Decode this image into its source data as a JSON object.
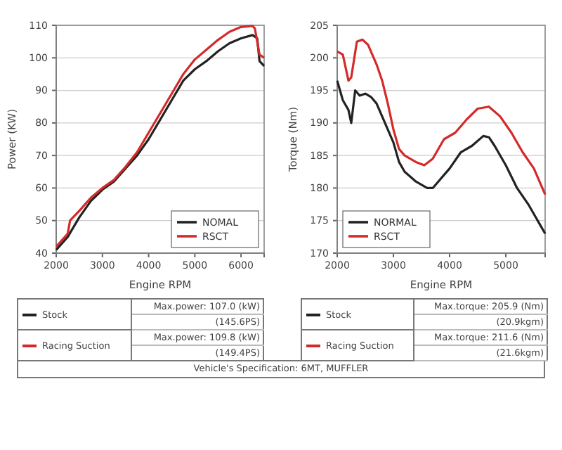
{
  "chart_data": [
    {
      "type": "line",
      "xlabel": "Engine RPM",
      "ylabel": "Power (KW)",
      "xlim": [
        2000,
        6500
      ],
      "ylim": [
        40,
        110
      ],
      "xticks": [
        2000,
        3000,
        4000,
        5000,
        6000
      ],
      "yticks": [
        40,
        50,
        60,
        70,
        80,
        90,
        100,
        110
      ],
      "grid": "y",
      "legend": "bottom right",
      "line_style": "solid",
      "series": [
        {
          "name": "NOMAL",
          "color": "#222222",
          "x": [
            2000,
            2250,
            2500,
            2750,
            3000,
            3250,
            3500,
            3750,
            4000,
            4250,
            4500,
            4750,
            5000,
            5250,
            5500,
            5750,
            6000,
            6250,
            6350,
            6400,
            6500
          ],
          "values": [
            41,
            45,
            51,
            56,
            59.5,
            62,
            66,
            70,
            75,
            81,
            87,
            93,
            96.5,
            99,
            102,
            104.5,
            106,
            107,
            106,
            99,
            97.5
          ]
        },
        {
          "name": "RSCT",
          "color": "#d42a2a",
          "x": [
            2000,
            2250,
            2300,
            2500,
            2750,
            3000,
            3250,
            3500,
            3750,
            4000,
            4250,
            4500,
            4750,
            5000,
            5250,
            5500,
            5750,
            6000,
            6250,
            6300,
            6400,
            6500
          ],
          "values": [
            42,
            46,
            50,
            53,
            57,
            60,
            62.5,
            66.5,
            71,
            77,
            83,
            89,
            95,
            99.5,
            102.5,
            105.5,
            108,
            109.5,
            109.8,
            109,
            101,
            100
          ]
        }
      ],
      "annotations": [
        "Stock",
        "Max.power: 107.0 (kW)",
        "(145.6PS)",
        "Racing Suction",
        "Max.power: 109.8 (kW)",
        "(149.4PS)",
        "Vehicle's Specification: 6MT, MUFFLER"
      ]
    },
    {
      "type": "line",
      "xlabel": "Engine RPM",
      "ylabel": "Torque (Nm)",
      "xlim": [
        2000,
        5700
      ],
      "ylim": [
        170,
        205
      ],
      "xticks": [
        2000,
        3000,
        4000,
        5000
      ],
      "yticks": [
        170,
        175,
        180,
        185,
        190,
        195,
        200,
        205
      ],
      "grid": "y",
      "legend": "bottom left",
      "line_style": "solid",
      "series": [
        {
          "name": "NORMAL",
          "color": "#222222",
          "x": [
            2000,
            2100,
            2200,
            2250,
            2320,
            2400,
            2500,
            2600,
            2700,
            2800,
            2900,
            3000,
            3100,
            3200,
            3400,
            3600,
            3700,
            3800,
            4000,
            4200,
            4400,
            4600,
            4700,
            4800,
            5000,
            5200,
            5400,
            5600,
            5700
          ],
          "values": [
            196.5,
            193.5,
            192,
            190,
            195,
            194.2,
            194.5,
            194,
            193,
            191,
            189,
            187,
            184,
            182.5,
            181,
            180,
            180,
            181,
            183,
            185.5,
            186.5,
            188,
            187.8,
            186.5,
            183.5,
            180,
            177.5,
            174.5,
            173
          ]
        },
        {
          "name": "RSCT",
          "color": "#d42a2a",
          "x": [
            2000,
            2100,
            2200,
            2250,
            2350,
            2450,
            2550,
            2700,
            2800,
            2900,
            3000,
            3100,
            3200,
            3400,
            3550,
            3700,
            3900,
            4100,
            4300,
            4500,
            4700,
            4900,
            5100,
            5300,
            5500,
            5700
          ],
          "values": [
            201,
            200.5,
            196.5,
            197,
            202.5,
            202.8,
            202,
            199,
            196.5,
            193,
            189,
            186,
            185,
            184,
            183.5,
            184.5,
            187.5,
            188.5,
            190.5,
            192.2,
            192.5,
            191,
            188.5,
            185.5,
            183,
            179
          ]
        }
      ],
      "annotations": [
        "Stock",
        "Max.torque: 205.9 (Nm)",
        "(20.9kgm)",
        "Racing Suction",
        "Max.torque: 211.6 (Nm)",
        "(21.6kgm)"
      ]
    }
  ]
}
